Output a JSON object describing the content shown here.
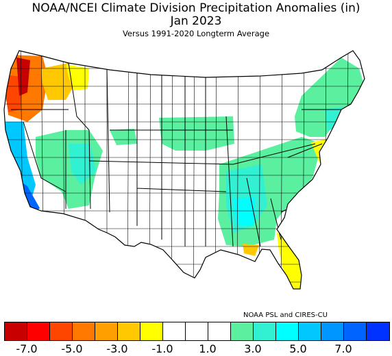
{
  "title": {
    "line1": "NOAA/NCEI Climate Division Precipitation Anomalies (in)",
    "line2": "Jan 2023",
    "line3": "Versus 1991-2020 Longterm Average"
  },
  "credit": "NOAA PSL and CIRES-CU",
  "colors": {
    "land": "#ffffff",
    "border": "#000000"
  },
  "legend": {
    "colors": [
      "#c80000",
      "#ff0000",
      "#ff4600",
      "#ff7800",
      "#ffa000",
      "#ffc800",
      "#ffff00",
      "#ffffff",
      "#ffffff",
      "#ffffff",
      "#5af0a0",
      "#32f0d2",
      "#00ffff",
      "#00c8ff",
      "#0096ff",
      "#0064ff",
      "#0032ff"
    ],
    "ticks": [
      "-7.0",
      "-5.0",
      "-3.0",
      "-1.0",
      "1.0",
      "3.0",
      "5.0",
      "7.0"
    ]
  },
  "anomaly_regions": [
    {
      "area": "western-washington",
      "color": "#ff7800"
    },
    {
      "area": "washington-coast",
      "color": "#c80000"
    },
    {
      "area": "oregon-coast",
      "color": "#ff4600"
    },
    {
      "area": "eastern-washington",
      "color": "#ffc800"
    },
    {
      "area": "north-idaho",
      "color": "#ffff00"
    },
    {
      "area": "california-coast",
      "color": "#00c8ff"
    },
    {
      "area": "southern-california",
      "color": "#0064ff"
    },
    {
      "area": "great-basin",
      "color": "#5af0a0"
    },
    {
      "area": "utah",
      "color": "#32f0d2"
    },
    {
      "area": "central-plains",
      "color": "#5af0a0"
    },
    {
      "area": "mississippi-valley",
      "color": "#32f0d2"
    },
    {
      "area": "southeast",
      "color": "#5af0a0"
    },
    {
      "area": "new-england",
      "color": "#5af0a0"
    },
    {
      "area": "mid-atlantic",
      "color": "#ffff00"
    },
    {
      "area": "florida",
      "color": "#ffff00"
    },
    {
      "area": "louisiana-coast",
      "color": "#ffc800"
    }
  ]
}
